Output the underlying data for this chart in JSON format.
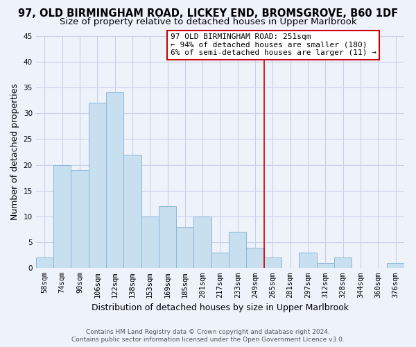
{
  "title": "97, OLD BIRMINGHAM ROAD, LICKEY END, BROMSGROVE, B60 1DF",
  "subtitle": "Size of property relative to detached houses in Upper Marlbrook",
  "xlabel": "Distribution of detached houses by size in Upper Marlbrook",
  "ylabel": "Number of detached properties",
  "footer_line1": "Contains HM Land Registry data © Crown copyright and database right 2024.",
  "footer_line2": "Contains public sector information licensed under the Open Government Licence v3.0.",
  "bar_labels": [
    "58sqm",
    "74sqm",
    "90sqm",
    "106sqm",
    "122sqm",
    "138sqm",
    "153sqm",
    "169sqm",
    "185sqm",
    "201sqm",
    "217sqm",
    "233sqm",
    "249sqm",
    "265sqm",
    "281sqm",
    "297sqm",
    "312sqm",
    "328sqm",
    "344sqm",
    "360sqm",
    "376sqm"
  ],
  "bar_values": [
    2,
    20,
    19,
    32,
    34,
    22,
    10,
    12,
    8,
    10,
    3,
    7,
    4,
    2,
    0,
    3,
    1,
    2,
    0,
    0,
    1
  ],
  "bar_color": "#c8dff0",
  "bar_edge_color": "#8ab8d8",
  "ylim": [
    0,
    45
  ],
  "yticks": [
    0,
    5,
    10,
    15,
    20,
    25,
    30,
    35,
    40,
    45
  ],
  "vline_idx": 12,
  "vline_color": "#cc0000",
  "annotation_title": "97 OLD BIRMINGHAM ROAD: 251sqm",
  "annotation_line1": "← 94% of detached houses are smaller (180)",
  "annotation_line2": "6% of semi-detached houses are larger (11) →",
  "bg_color": "#eef2fb",
  "grid_color": "#c8d0e8",
  "title_fontsize": 10.5,
  "subtitle_fontsize": 9.5,
  "axis_label_fontsize": 9,
  "tick_fontsize": 7.5,
  "footer_fontsize": 6.5
}
